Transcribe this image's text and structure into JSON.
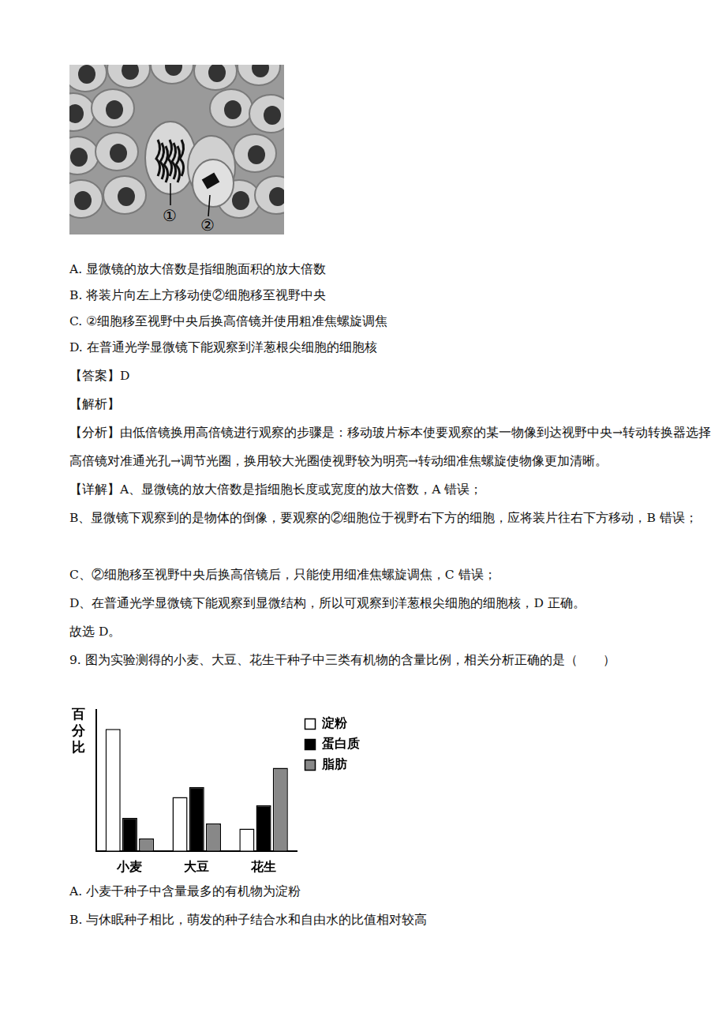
{
  "document": {
    "figure_labels": [
      "①",
      "②"
    ],
    "q8_options": [
      "A. 显微镜的放大倍数是指细胞面积的放大倍数",
      "B. 将装片向左上方移动使②细胞移至视野中央",
      "C. ②细胞移至视野中央后换高倍镜并使用粗准焦螺旋调焦",
      "D. 在普通光学显微镜下能观察到洋葱根尖细胞的细胞核"
    ],
    "answer": "【答案】D",
    "analysis_heading": "【解析】",
    "paragraphs": [
      "【分析】由低倍镜换用高倍镜进行观察的步骤是：移动玻片标本使要观察的某一物像到达视野中央→转动转换器选择高倍镜对准通光孔→调节光圈，换用较大光圈使视野较为明亮→转动细准焦螺旋使物像更加清晰。",
      "【详解】A、显微镜的放大倍数是指细胞长度或宽度的放大倍数，A 错误；",
      "B、显微镜下观察到的是物体的倒像，要观察的②细胞位于视野右下方的细胞，应将装片往右下方移动，B 错误；",
      "C、②细胞移至视野中央后换高倍镜后，只能使用细准焦螺旋调焦，C 错误；",
      "D、在普通光学显微镜下能观察到显微结构，所以可观察到洋葱根尖细胞的细胞核，D 正确。",
      "故选 D。"
    ],
    "q9_stem": "9. 图为实验测得的小麦、大豆、花生干种子中三类有机物的含量比例，相关分析正确的是（　　）",
    "q9_options": [
      "A. 小麦干种子中含量最多的有机物为淀粉",
      "B. 与休眠种子相比，萌发的种子结合水和自由水的比值相对较高"
    ]
  },
  "chart_data": {
    "type": "bar",
    "y_label": "百分比",
    "categories": [
      "小麦",
      "大豆",
      "花生"
    ],
    "series": [
      {
        "name": "淀粉",
        "color": "#ffffff",
        "values": [
          147,
          65,
          27
        ]
      },
      {
        "name": "蛋白质",
        "color": "#000000",
        "values": [
          40,
          77,
          55
        ]
      },
      {
        "name": "脂肪",
        "color": "#888888",
        "values": [
          15,
          33,
          100
        ]
      }
    ],
    "ylim": [
      0,
      170
    ],
    "grid": false,
    "legend": "upper right",
    "tick_labels": "x"
  }
}
